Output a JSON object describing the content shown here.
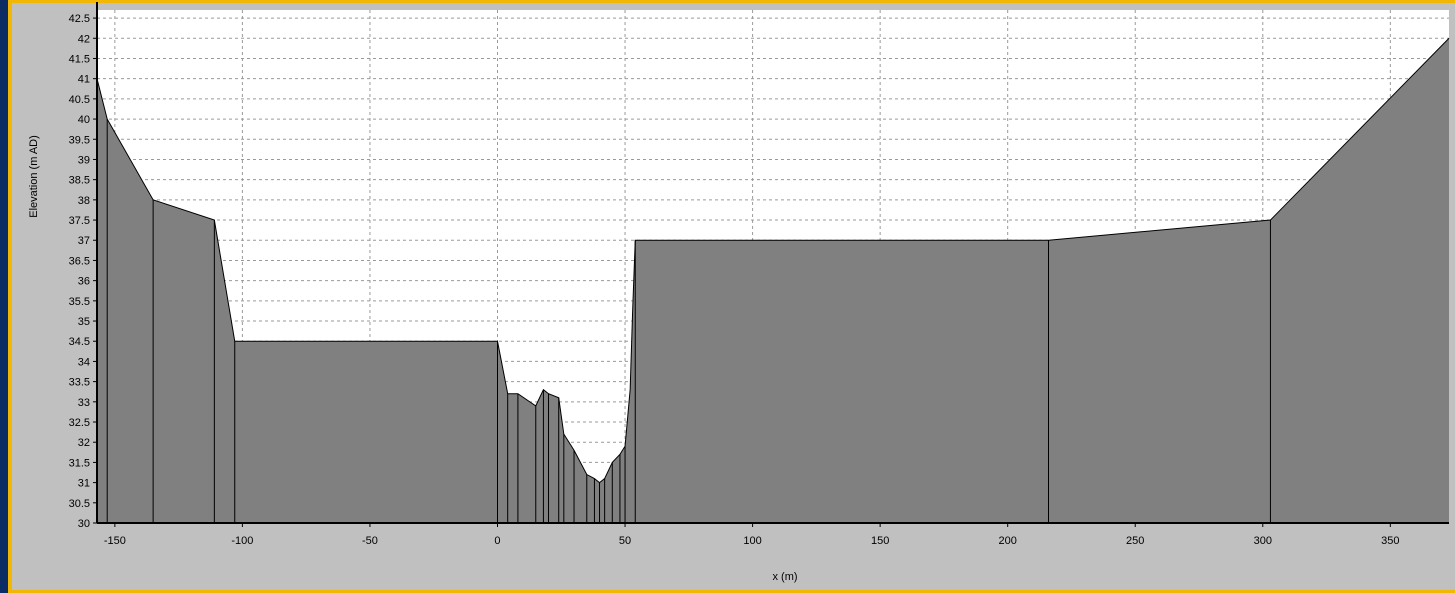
{
  "chart_data": {
    "type": "area",
    "xlabel": "x (m)",
    "ylabel": "Elevation (m AD)",
    "xlim": [
      -157,
      373
    ],
    "ylim": [
      30,
      42.7
    ],
    "x_ticks": [
      -150,
      -100,
      -50,
      0,
      50,
      100,
      150,
      200,
      250,
      300,
      350
    ],
    "y_ticks": [
      30,
      30.5,
      31,
      31.5,
      32,
      32.5,
      33,
      33.5,
      34,
      34.5,
      35,
      35.5,
      36,
      36.5,
      37,
      37.5,
      38,
      38.5,
      39,
      39.5,
      40,
      40.5,
      41,
      41.5,
      42,
      42.5
    ],
    "grid": true,
    "profile": {
      "x": [
        -157,
        -153,
        -135,
        -111,
        -103,
        0,
        4,
        8,
        15,
        18,
        20,
        24,
        26,
        30,
        35,
        38,
        40,
        42,
        45,
        48,
        50,
        52,
        53,
        54,
        60,
        120,
        160,
        216,
        303,
        373
      ],
      "y": [
        41.0,
        40.0,
        38.0,
        37.5,
        34.5,
        34.5,
        33.2,
        33.2,
        32.9,
        33.3,
        33.2,
        33.1,
        32.2,
        31.8,
        31.2,
        31.1,
        31.0,
        31.1,
        31.5,
        31.7,
        31.9,
        33.3,
        35.3,
        37.0,
        37.0,
        37.0,
        37.0,
        37.0,
        37.5,
        42.0
      ]
    },
    "vertical_dividers_x": [
      -153,
      -135,
      -111,
      -103,
      0,
      4,
      8,
      15,
      18,
      20,
      24,
      26,
      30,
      35,
      38,
      40,
      42,
      45,
      48,
      50,
      54,
      216,
      303
    ],
    "colors": {
      "plot_background": "#ffffff",
      "fill": "#808080",
      "outline": "#000000",
      "grid": "#9a9a9a",
      "frame_background": "#c0c0c0",
      "accent_border": "#f2b705",
      "screen_background": "#0b2d63"
    }
  }
}
